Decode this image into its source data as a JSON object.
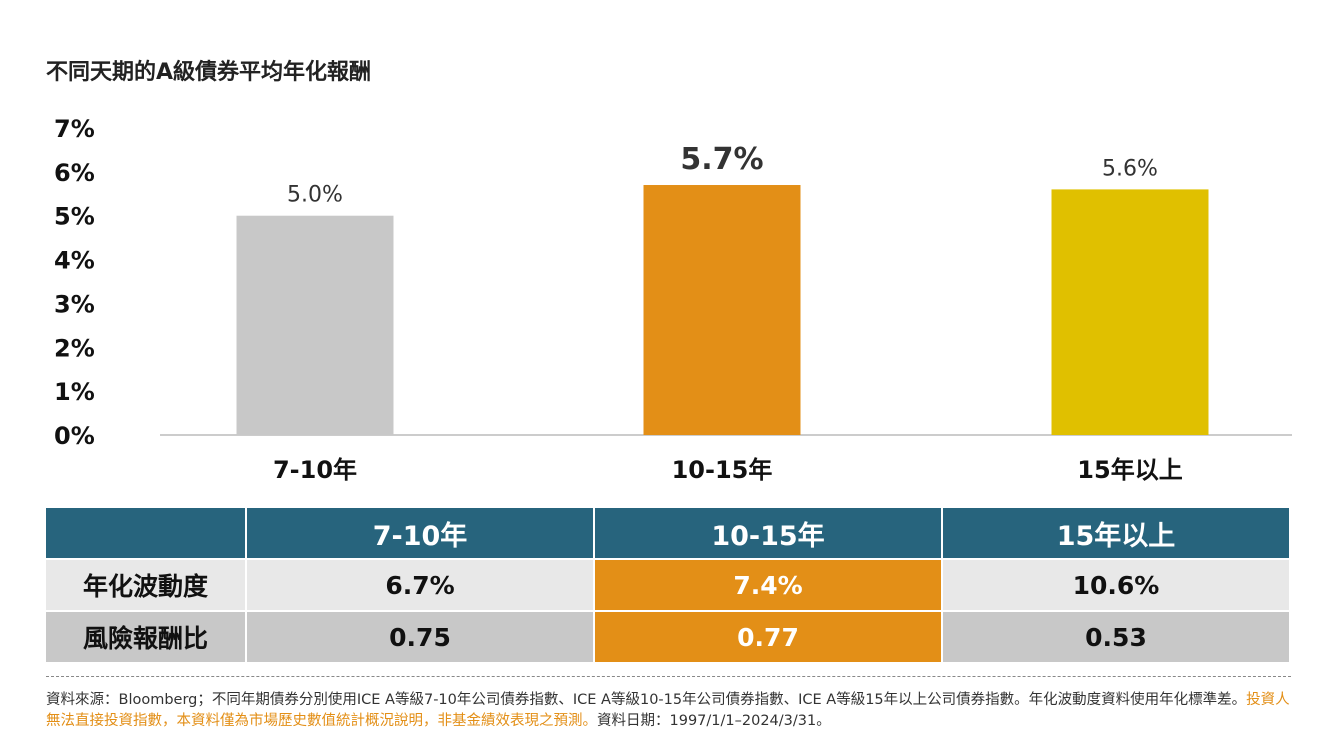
{
  "title": "不同天期的A級債券平均年化報酬",
  "chart_data": {
    "type": "bar",
    "title": "不同天期的A級債券平均年化報酬",
    "categories": [
      "7-10年",
      "10-15年",
      "15年以上"
    ],
    "values": [
      5.0,
      5.7,
      5.6
    ],
    "value_labels": [
      "5.0%",
      "5.7%",
      "5.6%"
    ],
    "colors": [
      "#c8c8c8",
      "#e38f17",
      "#e0c000"
    ],
    "label_colors": [
      "#333333",
      "#e38f17",
      "#333333"
    ],
    "highlight_index": 1,
    "ylim": [
      0,
      7
    ],
    "yticks": [
      "0%",
      "1%",
      "2%",
      "3%",
      "4%",
      "5%",
      "6%",
      "7%"
    ],
    "xlabel": "",
    "ylabel": "",
    "grid": false
  },
  "table": {
    "headers": [
      "",
      "7-10年",
      "10-15年",
      "15年以上"
    ],
    "rows": [
      {
        "label": "年化波動度",
        "values": [
          "6.7%",
          "7.4%",
          "10.6%"
        ]
      },
      {
        "label": "風險報酬比",
        "values": [
          "0.75",
          "0.77",
          "0.53"
        ]
      }
    ],
    "highlight_col": 2
  },
  "footnote": {
    "part1": "資料來源：Bloomberg；不同年期債券分別使用ICE A等級7-10年公司債券指數、ICE A等級10-15年公司債券指數、ICE A等級15年以上公司債券指數。年化波動度資料使用年化標準差。",
    "warning": "投資人無法直接投資指數，本資料僅為市場歷史數值統計概況說明，非基金績效表現之預測。",
    "part2": "資料日期：1997/1/1–2024/3/31。"
  }
}
